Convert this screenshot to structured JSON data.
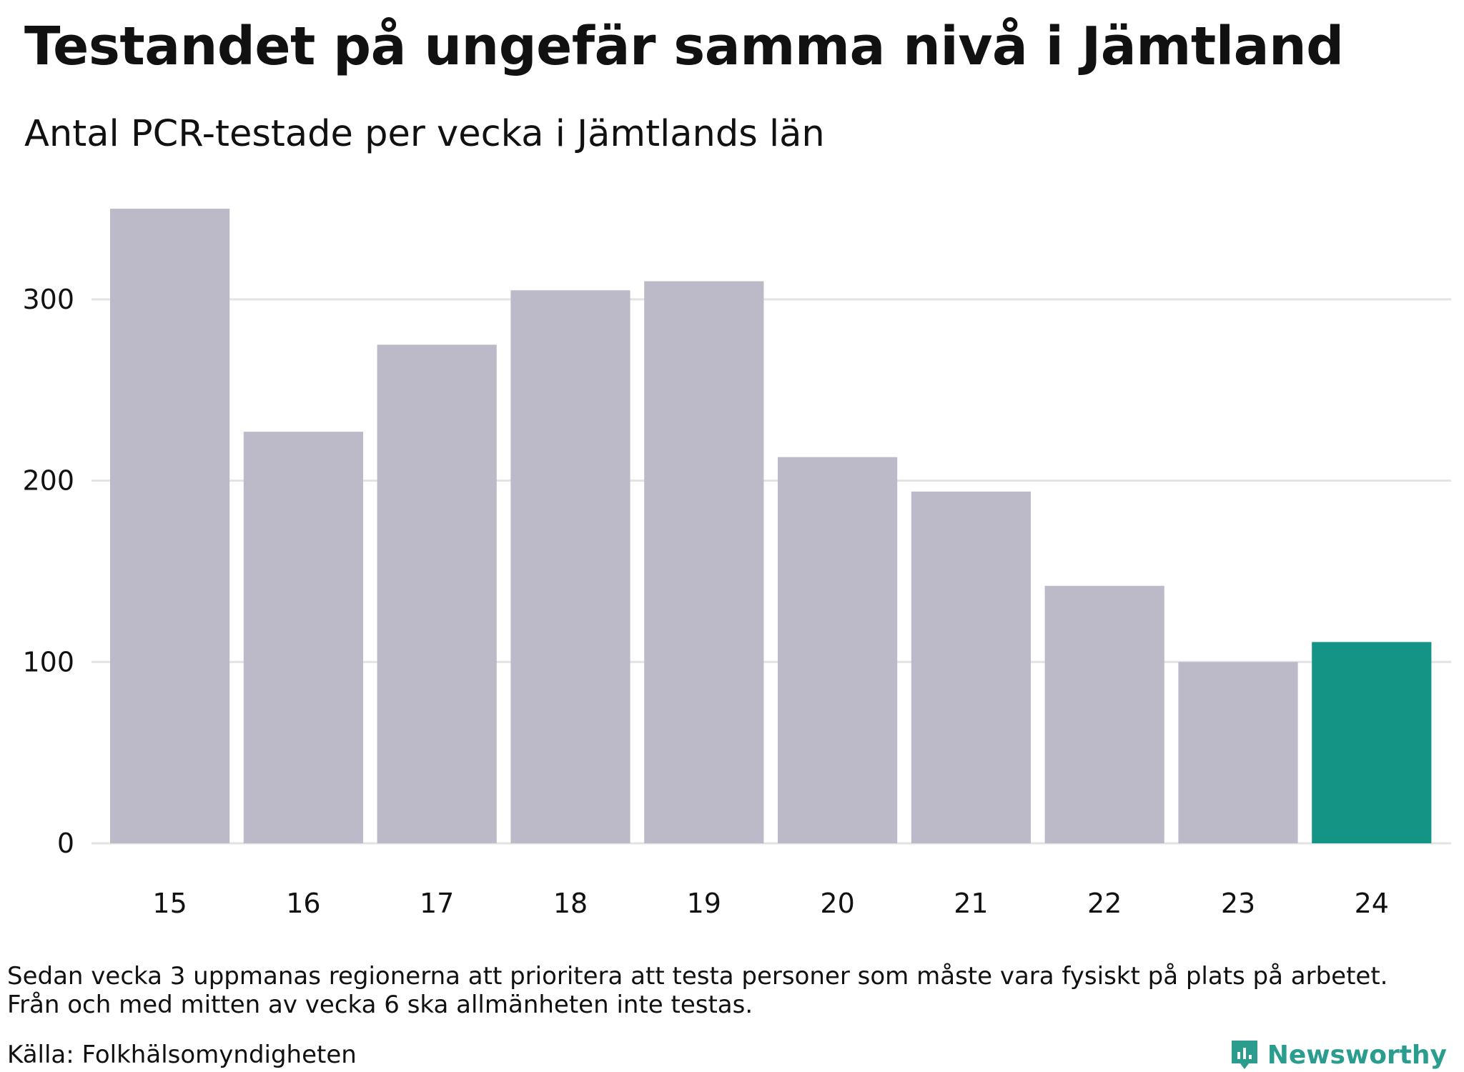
{
  "title": "Testandet på ungefär samma nivå i Jämtland",
  "subtitle": "Antal PCR-testade per vecka i Jämtlands län",
  "note_line1": "Sedan vecka 3 uppmanas regionerna att prioritera att testa personer som måste vara fysiskt på plats på arbetet.",
  "note_line2": "Från och med mitten av vecka 6 ska allmänheten inte testas.",
  "source": "Källa: Folkhälsomyndigheten",
  "brand": "Newsworthy",
  "colors": {
    "bar": "#bcbac8",
    "highlight": "#149484",
    "grid": "#e3e3e6",
    "brand": "#2a9d8f"
  },
  "chart_data": {
    "type": "bar",
    "title": "Testandet på ungefär samma nivå i Jämtland",
    "subtitle": "Antal PCR-testade per vecka i Jämtlands län",
    "xlabel": "",
    "ylabel": "",
    "categories": [
      "15",
      "16",
      "17",
      "18",
      "19",
      "20",
      "21",
      "22",
      "23",
      "24"
    ],
    "values": [
      350,
      227,
      275,
      305,
      310,
      213,
      194,
      142,
      100,
      111
    ],
    "highlight_index": 9,
    "y_ticks": [
      0,
      100,
      200,
      300
    ],
    "ylim": [
      0,
      350
    ],
    "grid": true
  }
}
